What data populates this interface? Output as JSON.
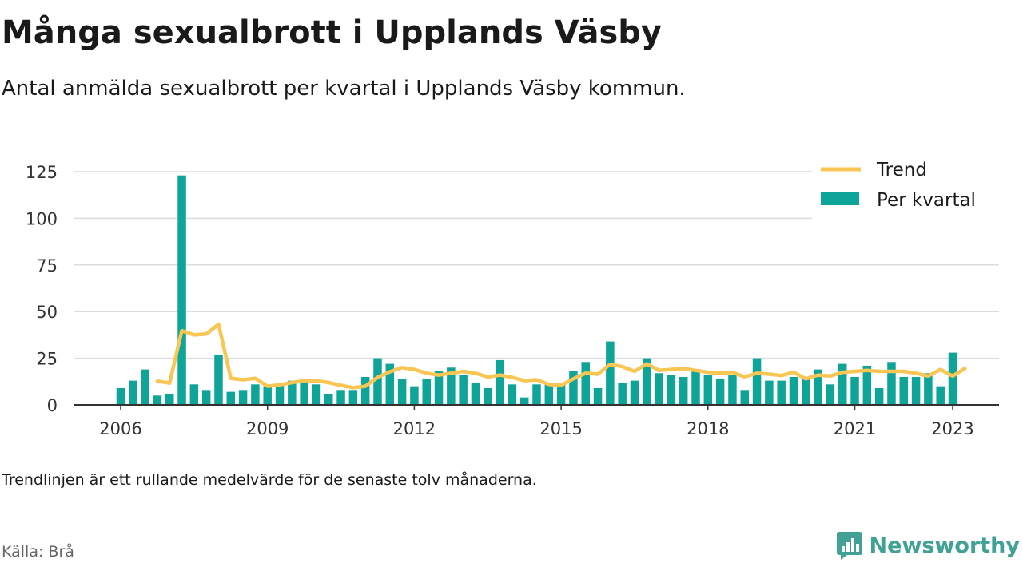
{
  "header": {
    "title": "Många sexualbrott i Upplands Väsby",
    "subtitle": "Antal anmälda sexualbrott per kvartal i Upplands Väsby kommun."
  },
  "footer": {
    "note": "Trendlinjen är ett rullande medelvärde för de senaste tolv månaderna.",
    "source": "Källa: Brå",
    "brand": "Newsworthy"
  },
  "colors": {
    "bar": "#0ea498",
    "trend": "#f9c553",
    "grid": "#dcdcdc",
    "brand": "#41a194"
  },
  "chart_data": {
    "type": "bar",
    "x_tick_labels": [
      "2006",
      "2009",
      "2012",
      "2015",
      "2018",
      "2021",
      "2023"
    ],
    "x_tick_years": [
      2006,
      2009,
      2012,
      2015,
      2018,
      2021,
      2023
    ],
    "y_tick_labels": [
      "0",
      "25",
      "50",
      "75",
      "100",
      "125"
    ],
    "ylim": [
      0,
      125
    ],
    "grid": true,
    "legend_position": "top-right",
    "series": [
      {
        "name": "Per kvartal",
        "type": "bar",
        "start": "2006 Q1",
        "values": [
          9,
          13,
          19,
          5,
          6,
          123,
          11,
          8,
          27,
          7,
          8,
          11,
          10,
          11,
          13,
          14,
          11,
          6,
          8,
          8,
          15,
          25,
          22,
          14,
          10,
          14,
          18,
          20,
          16,
          12,
          9,
          24,
          11,
          4,
          11,
          12,
          11,
          18,
          23,
          9,
          34,
          12,
          13,
          25,
          17,
          16,
          15,
          19,
          16,
          14,
          16,
          8,
          25,
          13,
          13,
          15,
          14,
          19,
          11,
          22,
          15,
          21,
          9,
          23,
          15,
          15,
          17,
          10,
          28
        ]
      },
      {
        "name": "Trend",
        "type": "line",
        "start": "2006 Q4",
        "values": [
          12.75,
          11.75,
          39.75,
          37.5,
          38.0,
          43.25,
          14.25,
          13.5,
          14.25,
          10.0,
          10.75,
          12.0,
          13.0,
          13.0,
          12.0,
          10.5,
          9.25,
          10.0,
          14.75,
          17.75,
          20.0,
          19.0,
          17.0,
          16.0,
          17.0,
          18.0,
          17.0,
          15.0,
          16.0,
          14.75,
          13.0,
          13.5,
          11.0,
          10.5,
          14.0,
          17.0,
          16.5,
          21.75,
          20.5,
          18.0,
          22.0,
          18.5,
          19.0,
          19.5,
          18.5,
          17.5,
          17.0,
          17.5,
          15.0,
          17.0,
          16.5,
          15.75,
          17.5,
          14.0,
          16.0,
          15.5,
          17.5,
          18.0,
          18.5,
          18.0,
          18.0,
          18.0,
          17.0,
          15.5,
          19.0,
          15.5,
          19.5
        ]
      }
    ]
  }
}
